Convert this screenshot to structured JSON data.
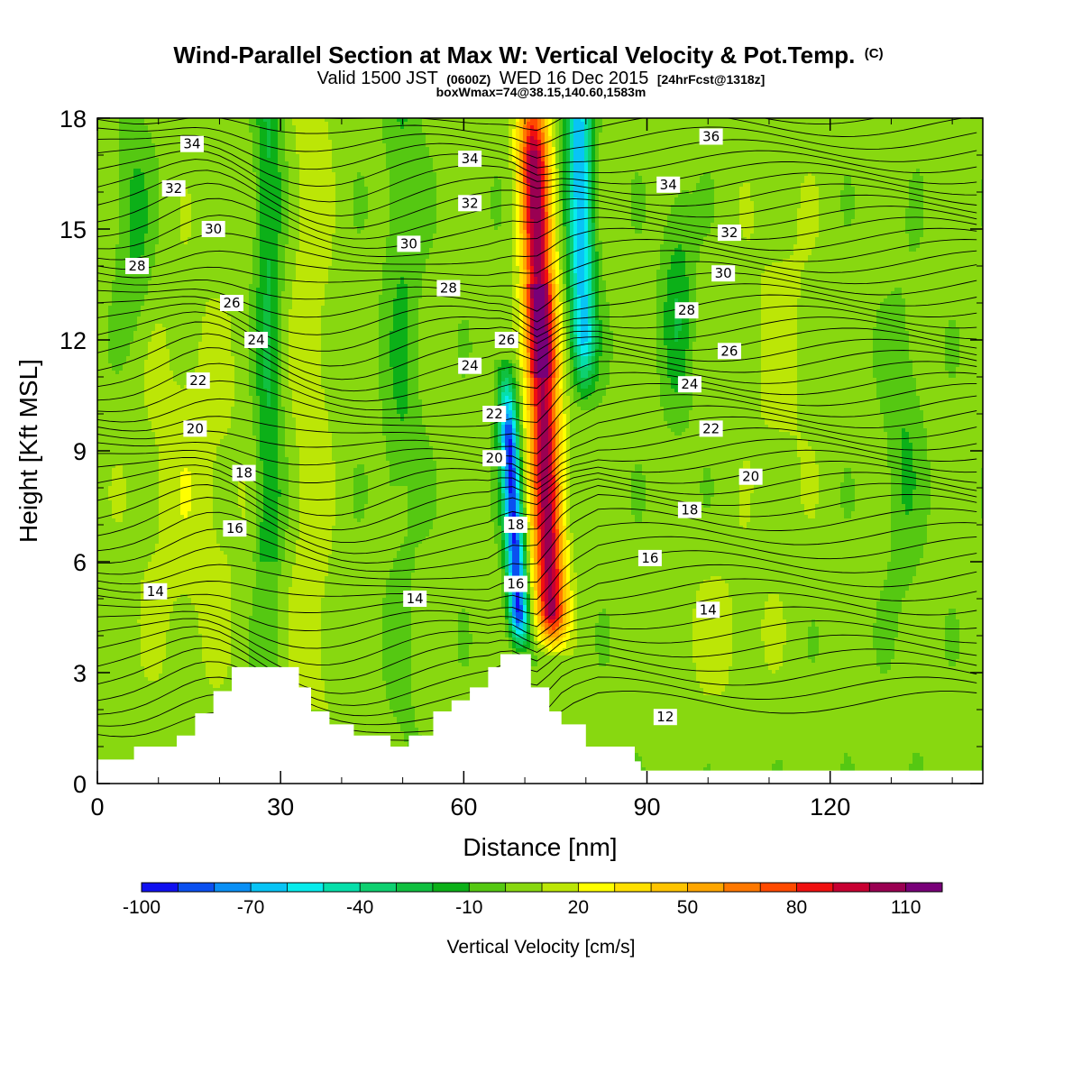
{
  "header": {
    "title_main": "Wind-Parallel Section at Max W: Vertical Velocity & Pot.Temp.",
    "title_mark": "(C)",
    "subtitle_valid": "Valid 1500 JST",
    "subtitle_zulu": "(0600Z)",
    "subtitle_date": "WED 16 Dec 2015",
    "subtitle_fcst": "[24hrFcst@1318z]",
    "box_info": "boxWmax=74@38.15,140.60,1583m"
  },
  "chart_data": {
    "type": "contour",
    "xlabel": "Distance [nm]",
    "ylabel": "Height [Kft MSL]",
    "xlim": [
      0,
      145
    ],
    "ylim": [
      0,
      18
    ],
    "x_ticks": [
      "0",
      "30",
      "60",
      "90",
      "120"
    ],
    "x_tick_values": [
      0,
      30,
      60,
      90,
      120
    ],
    "y_ticks": [
      "0",
      "3",
      "6",
      "9",
      "12",
      "15",
      "18"
    ],
    "y_tick_values": [
      0,
      3,
      6,
      9,
      12,
      15,
      18
    ],
    "colorbar": {
      "title": "Vertical Velocity [cm/s]",
      "labels": [
        "-100",
        "-70",
        "-40",
        "-10",
        "20",
        "50",
        "80",
        "110"
      ],
      "label_values": [
        -100,
        -70,
        -40,
        -10,
        20,
        50,
        80,
        110
      ],
      "levels": [
        -100,
        -90,
        -80,
        -70,
        -60,
        -50,
        -40,
        -30,
        -20,
        -10,
        0,
        10,
        20,
        30,
        40,
        50,
        60,
        70,
        80,
        90,
        100,
        110,
        120
      ],
      "colors": [
        "#1010f0",
        "#0a50f0",
        "#0a90f5",
        "#08c4f5",
        "#08ecec",
        "#06dfaa",
        "#0ed070",
        "#10c040",
        "#0cb018",
        "#55c812",
        "#88d810",
        "#bce606",
        "#ffff00",
        "#ffe000",
        "#ffc400",
        "#ffa600",
        "#ff7800",
        "#ff4a00",
        "#f01010",
        "#c80032",
        "#9a0052",
        "#780078"
      ]
    },
    "theta_labels": [
      {
        "text": "34",
        "x": 15.5,
        "y": 17.3
      },
      {
        "text": "32",
        "x": 12.5,
        "y": 16.1
      },
      {
        "text": "30",
        "x": 19.0,
        "y": 15.0
      },
      {
        "text": "28",
        "x": 6.5,
        "y": 14.0
      },
      {
        "text": "26",
        "x": 22.0,
        "y": 13.0
      },
      {
        "text": "24",
        "x": 26.0,
        "y": 12.0
      },
      {
        "text": "22",
        "x": 16.5,
        "y": 10.9
      },
      {
        "text": "20",
        "x": 16.0,
        "y": 9.6
      },
      {
        "text": "18",
        "x": 24.0,
        "y": 8.4
      },
      {
        "text": "16",
        "x": 22.5,
        "y": 6.9
      },
      {
        "text": "14",
        "x": 9.5,
        "y": 5.2
      },
      {
        "text": "34",
        "x": 61.0,
        "y": 16.9
      },
      {
        "text": "32",
        "x": 61.0,
        "y": 15.7
      },
      {
        "text": "30",
        "x": 51.0,
        "y": 14.6
      },
      {
        "text": "28",
        "x": 57.5,
        "y": 13.4
      },
      {
        "text": "26",
        "x": 67.0,
        "y": 12.0
      },
      {
        "text": "24",
        "x": 61.0,
        "y": 11.3
      },
      {
        "text": "22",
        "x": 65.0,
        "y": 10.0
      },
      {
        "text": "20",
        "x": 65.0,
        "y": 8.8
      },
      {
        "text": "18",
        "x": 68.5,
        "y": 7.0
      },
      {
        "text": "16",
        "x": 68.5,
        "y": 5.4
      },
      {
        "text": "14",
        "x": 52.0,
        "y": 5.0
      },
      {
        "text": "36",
        "x": 100.5,
        "y": 17.5
      },
      {
        "text": "34",
        "x": 93.5,
        "y": 16.2
      },
      {
        "text": "32",
        "x": 103.5,
        "y": 14.9
      },
      {
        "text": "30",
        "x": 102.5,
        "y": 13.8
      },
      {
        "text": "28",
        "x": 96.5,
        "y": 12.8
      },
      {
        "text": "26",
        "x": 103.5,
        "y": 11.7
      },
      {
        "text": "24",
        "x": 97.0,
        "y": 10.8
      },
      {
        "text": "22",
        "x": 100.5,
        "y": 9.6
      },
      {
        "text": "20",
        "x": 107.0,
        "y": 8.3
      },
      {
        "text": "18",
        "x": 97.0,
        "y": 7.4
      },
      {
        "text": "16",
        "x": 90.5,
        "y": 6.1
      },
      {
        "text": "14",
        "x": 100.0,
        "y": 4.7
      },
      {
        "text": "12",
        "x": 93.0,
        "y": 1.8
      }
    ]
  }
}
